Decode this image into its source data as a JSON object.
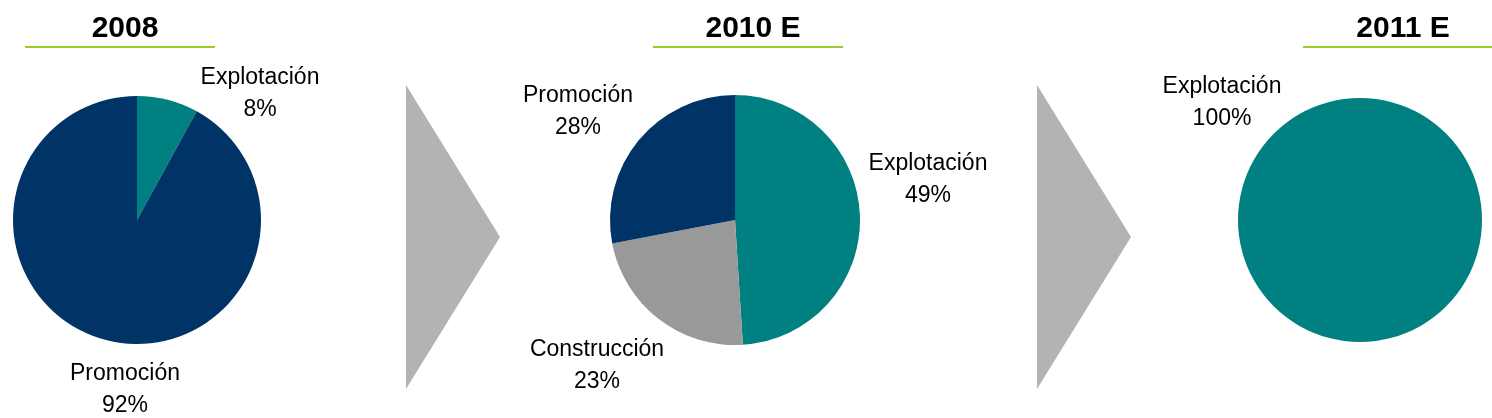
{
  "chart_data": [
    {
      "type": "pie",
      "title": "2008",
      "categories": [
        "Explotación",
        "Promoción"
      ],
      "values": [
        8,
        92
      ],
      "colors": [
        "#008080",
        "#003366"
      ],
      "value_labels": [
        "8%",
        "92%"
      ],
      "legend": false
    },
    {
      "type": "pie",
      "title": "2010 E",
      "categories": [
        "Explotación",
        "Construcción",
        "Promoción"
      ],
      "values": [
        49,
        23,
        28
      ],
      "colors": [
        "#008080",
        "#999999",
        "#003366"
      ],
      "value_labels": [
        "49%",
        "23%",
        "28%"
      ],
      "legend": false
    },
    {
      "type": "pie",
      "title": "2011 E",
      "categories": [
        "Explotación"
      ],
      "values": [
        100
      ],
      "colors": [
        "#008080"
      ],
      "value_labels": [
        "100%"
      ],
      "legend": false
    }
  ]
}
